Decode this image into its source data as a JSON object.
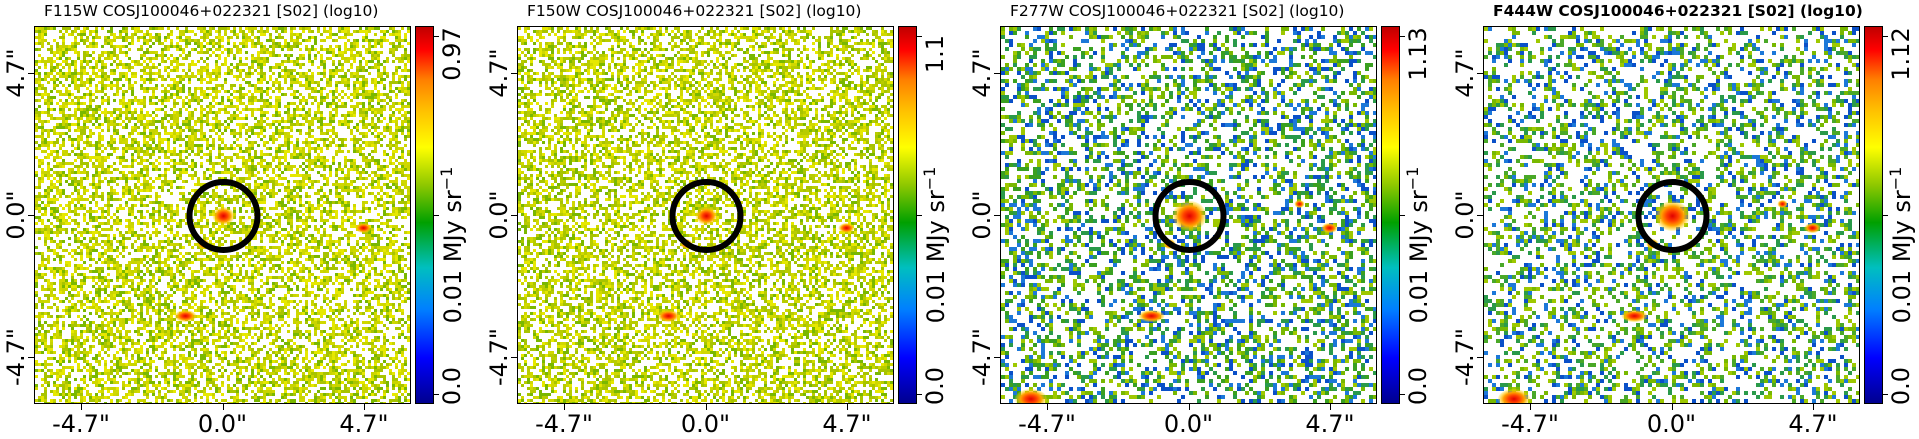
{
  "panels": [
    {
      "title": "F115W COSJ100046+022321 [S02] (log10)",
      "title_bold": false,
      "cbar_max": "0.97",
      "cbar_mid": "0.01 MJy sr",
      "cbar_min": "0.0",
      "x_ticks": [
        "-4.7\"",
        "0.0\"",
        "4.7\""
      ],
      "y_ticks": [
        "4.7\"",
        "0.0\"",
        "-4.7\""
      ],
      "noise_color": "#c8d400",
      "noise_density": 0.55
    },
    {
      "title": "F150W COSJ100046+022321 [S02] (log10)",
      "title_bold": false,
      "cbar_max": "1.1",
      "cbar_mid": "0.01 MJy sr",
      "cbar_min": "0.0",
      "x_ticks": [
        "-4.7\"",
        "0.0\"",
        "4.7\""
      ],
      "y_ticks": [
        "4.7\"",
        "0.0\"",
        "-4.7\""
      ],
      "noise_color": "#b8cc00",
      "noise_density": 0.55
    },
    {
      "title": "F277W COSJ100046+022321 [S02] (log10)",
      "title_bold": false,
      "cbar_max": "1.13",
      "cbar_mid": "0.01 MJy sr",
      "cbar_min": "0.0",
      "x_ticks": [
        "-4.7\"",
        "0.0\"",
        "4.7\""
      ],
      "y_ticks": [
        "4.7\"",
        "0.0\"",
        "-4.7\""
      ],
      "noise_color": "#3aa020",
      "noise_density": 0.45
    },
    {
      "title": "F444W COSJ100046+022321 [S02] (log10)",
      "title_bold": true,
      "cbar_max": "1.12",
      "cbar_mid": "0.01 MJy sr",
      "cbar_min": "0.0",
      "x_ticks": [
        "-4.7\"",
        "0.0\"",
        "4.7\""
      ],
      "y_ticks": [
        "4.7\"",
        "0.0\"",
        "-4.7\""
      ],
      "noise_color": "#4aa828",
      "noise_density": 0.4
    }
  ],
  "cbar_unit_superscript": "−1"
}
